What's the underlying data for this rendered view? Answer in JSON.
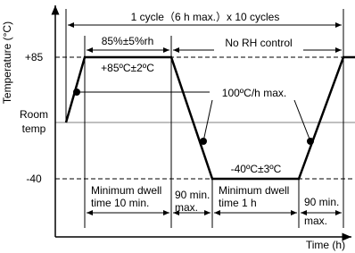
{
  "axis": {
    "y_title": "Temperature (°C)",
    "x_title": "Time (h)",
    "y_labels": [
      "+85",
      "Room",
      "temp",
      "-40"
    ]
  },
  "annotations": {
    "cycle": "1 cycle（6 h max.）x 10 cycles",
    "humidity": "85%±5%rh",
    "no_rh": "No RH control",
    "high_temp": "+85ºC±2ºC",
    "ramp": "100ºC/h max.",
    "low_temp": "-40ºC±3ºC",
    "dwell_high": [
      "Minimum dwell",
      "time 10 min."
    ],
    "ramp_down": [
      "90 min.",
      "max."
    ],
    "dwell_low": [
      "Minimum dwell",
      "time 1 h"
    ],
    "ramp_up": [
      "90 min.",
      "max."
    ]
  }
}
